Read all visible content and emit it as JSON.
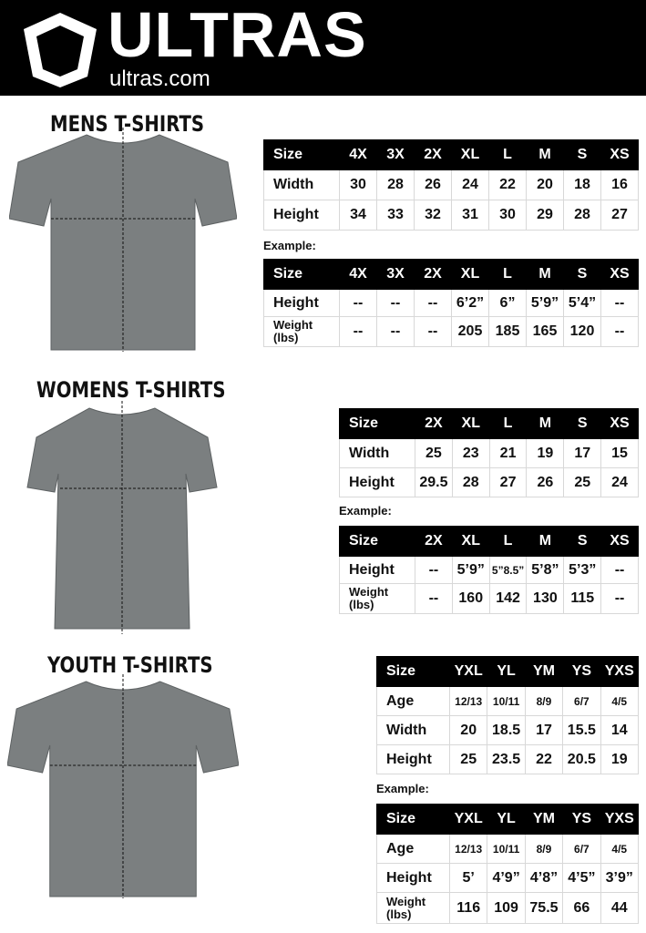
{
  "header": {
    "brand": "ULTRAS",
    "url": "ultras.com",
    "logo_icon": "pentagon-shield-icon"
  },
  "example_label": "Example:",
  "sections": [
    {
      "title": "MENS T-SHIRTS",
      "size_table": {
        "columns": [
          "Size",
          "4X",
          "3X",
          "2X",
          "XL",
          "L",
          "M",
          "S",
          "XS"
        ],
        "rows": [
          [
            "Width",
            "30",
            "28",
            "26",
            "24",
            "22",
            "20",
            "18",
            "16"
          ],
          [
            "Height",
            "34",
            "33",
            "32",
            "31",
            "30",
            "29",
            "28",
            "27"
          ]
        ]
      },
      "example_table": {
        "columns": [
          "Size",
          "4X",
          "3X",
          "2X",
          "XL",
          "L",
          "M",
          "S",
          "XS"
        ],
        "rows": [
          [
            "Height",
            "--",
            "--",
            "--",
            "6’2”",
            "6”",
            "5’9”",
            "5’4”",
            "--"
          ],
          [
            "Weight (lbs)",
            "--",
            "--",
            "--",
            "205",
            "185",
            "165",
            "120",
            "--"
          ]
        ]
      }
    },
    {
      "title": "WOMENS T-SHIRTS",
      "size_table": {
        "columns": [
          "Size",
          "2X",
          "XL",
          "L",
          "M",
          "S",
          "XS"
        ],
        "rows": [
          [
            "Width",
            "25",
            "23",
            "21",
            "19",
            "17",
            "15"
          ],
          [
            "Height",
            "29.5",
            "28",
            "27",
            "26",
            "25",
            "24"
          ]
        ]
      },
      "example_table": {
        "columns": [
          "Size",
          "2X",
          "XL",
          "L",
          "M",
          "S",
          "XS"
        ],
        "rows": [
          [
            "Height",
            "--",
            "5’9”",
            "5”8.5”",
            "5’8”",
            "5’3”",
            "--"
          ],
          [
            "Weight (lbs)",
            "--",
            "160",
            "142",
            "130",
            "115",
            "--"
          ]
        ]
      }
    },
    {
      "title": "YOUTH T-SHIRTS",
      "size_table": {
        "columns": [
          "Size",
          "YXL",
          "YL",
          "YM",
          "YS",
          "YXS"
        ],
        "rows": [
          [
            "Age",
            "12/13",
            "10/11",
            "8/9",
            "6/7",
            "4/5"
          ],
          [
            "Width",
            "20",
            "18.5",
            "17",
            "15.5",
            "14"
          ],
          [
            "Height",
            "25",
            "23.5",
            "22",
            "20.5",
            "19"
          ]
        ]
      },
      "example_table": {
        "columns": [
          "Size",
          "YXL",
          "YL",
          "YM",
          "YS",
          "YXS"
        ],
        "rows": [
          [
            "Age",
            "12/13",
            "10/11",
            "8/9",
            "6/7",
            "4/5"
          ],
          [
            "Height",
            "5’",
            "4’9”",
            "4’8”",
            "4’5”",
            "3’9”"
          ],
          [
            "Weight (lbs)",
            "116",
            "109",
            "75.5",
            "66",
            "44"
          ]
        ]
      }
    }
  ]
}
